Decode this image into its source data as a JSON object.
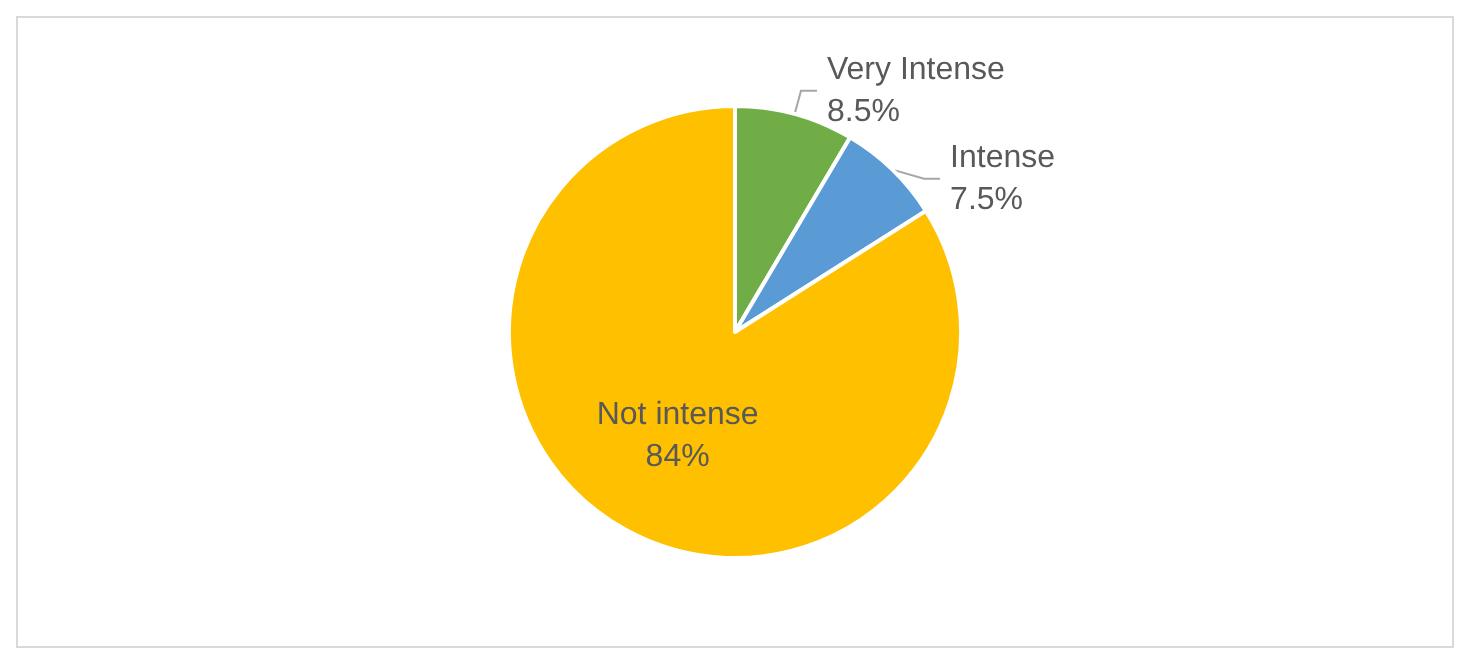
{
  "chart_data": {
    "type": "pie",
    "categories": [
      "Very Intense",
      "Intense",
      "Not intense"
    ],
    "values": [
      8.5,
      7.5,
      84
    ],
    "colors": [
      "#70ad47",
      "#5b9bd5",
      "#ffc000"
    ],
    "value_labels": [
      "8.5%",
      "7.5%",
      "84%"
    ],
    "legend": false
  }
}
